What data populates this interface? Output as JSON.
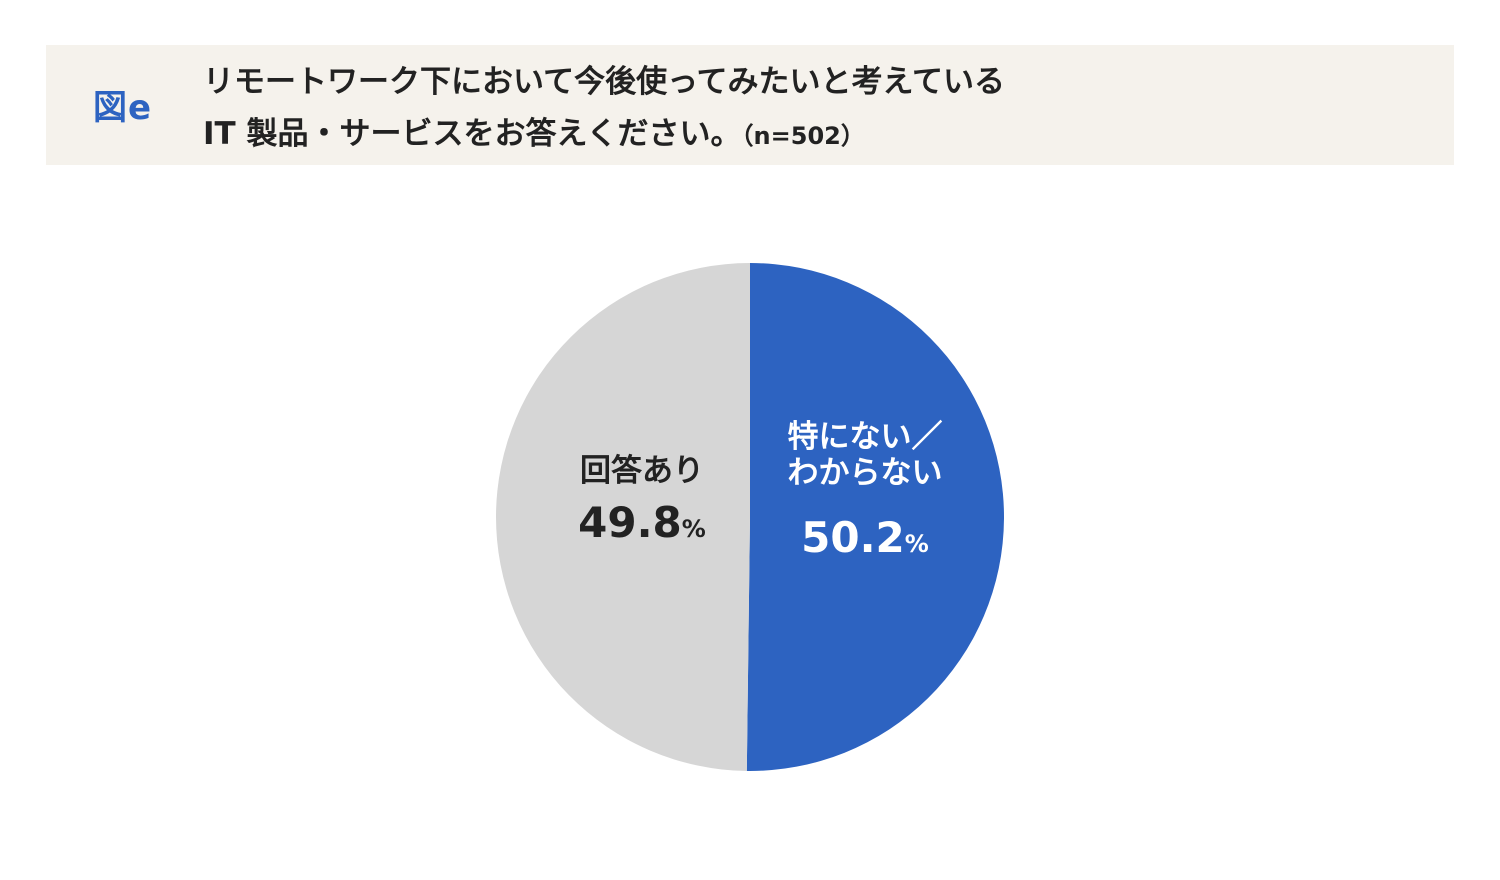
{
  "header": {
    "figure_label": "図e",
    "title_line1": "リモートワーク下において今後使ってみたいと考えている",
    "title_line2": "IT 製品・サービスをお答えください。",
    "sample_note": "（n=502）"
  },
  "chart_data": {
    "type": "pie",
    "start": "12 o'clock",
    "direction": "clockwise",
    "slices": [
      {
        "name": "特にない／わからない",
        "label_lines": [
          "特にない／",
          "わからない"
        ],
        "value": 50.2,
        "value_text": "50.2",
        "unit": "%",
        "color": "#2d63c1",
        "text_color": "#ffffff"
      },
      {
        "name": "回答あり",
        "label_lines": [
          "回答あり"
        ],
        "value": 49.8,
        "value_text": "49.8",
        "unit": "%",
        "color": "#d6d6d6",
        "text_color": "#222222"
      }
    ]
  }
}
